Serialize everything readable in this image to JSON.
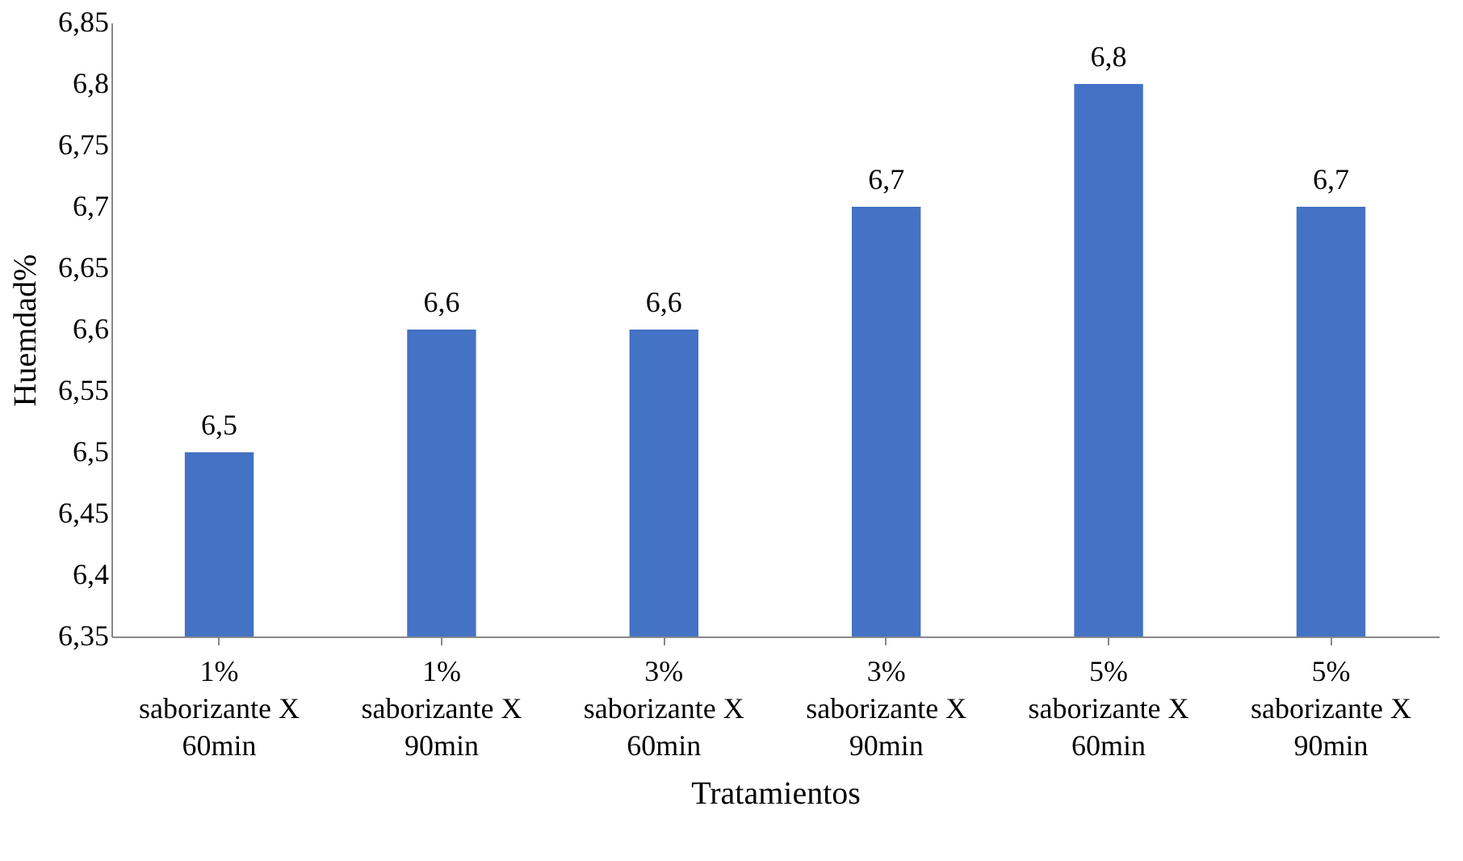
{
  "chart_data": {
    "type": "bar",
    "xlabel": "Tratamientos",
    "ylabel": "Huemdad%",
    "categories": [
      "1% saborizante X 60min",
      "1% saborizante X 90min",
      "3% saborizante X 60min",
      "3% saborizante X 90min",
      "5% saborizante X 60min",
      "5% saborizante X 90min"
    ],
    "values": [
      6.5,
      6.6,
      6.6,
      6.7,
      6.8,
      6.7
    ],
    "value_labels": [
      "6,5",
      "6,6",
      "6,6",
      "6,7",
      "6,8",
      "6,7"
    ],
    "color": "#4472c4",
    "ylim": [
      6.35,
      6.85
    ],
    "yticks": [
      {
        "value": 6.35,
        "label": "6,35"
      },
      {
        "value": 6.4,
        "label": "6,4"
      },
      {
        "value": 6.45,
        "label": "6,45"
      },
      {
        "value": 6.5,
        "label": "6,5"
      },
      {
        "value": 6.55,
        "label": "6,55"
      },
      {
        "value": 6.6,
        "label": "6,6"
      },
      {
        "value": 6.65,
        "label": "6,65"
      },
      {
        "value": 6.7,
        "label": "6,7"
      },
      {
        "value": 6.75,
        "label": "6,75"
      },
      {
        "value": 6.8,
        "label": "6,8"
      },
      {
        "value": 6.85,
        "label": "6,85"
      }
    ],
    "grid": false
  }
}
